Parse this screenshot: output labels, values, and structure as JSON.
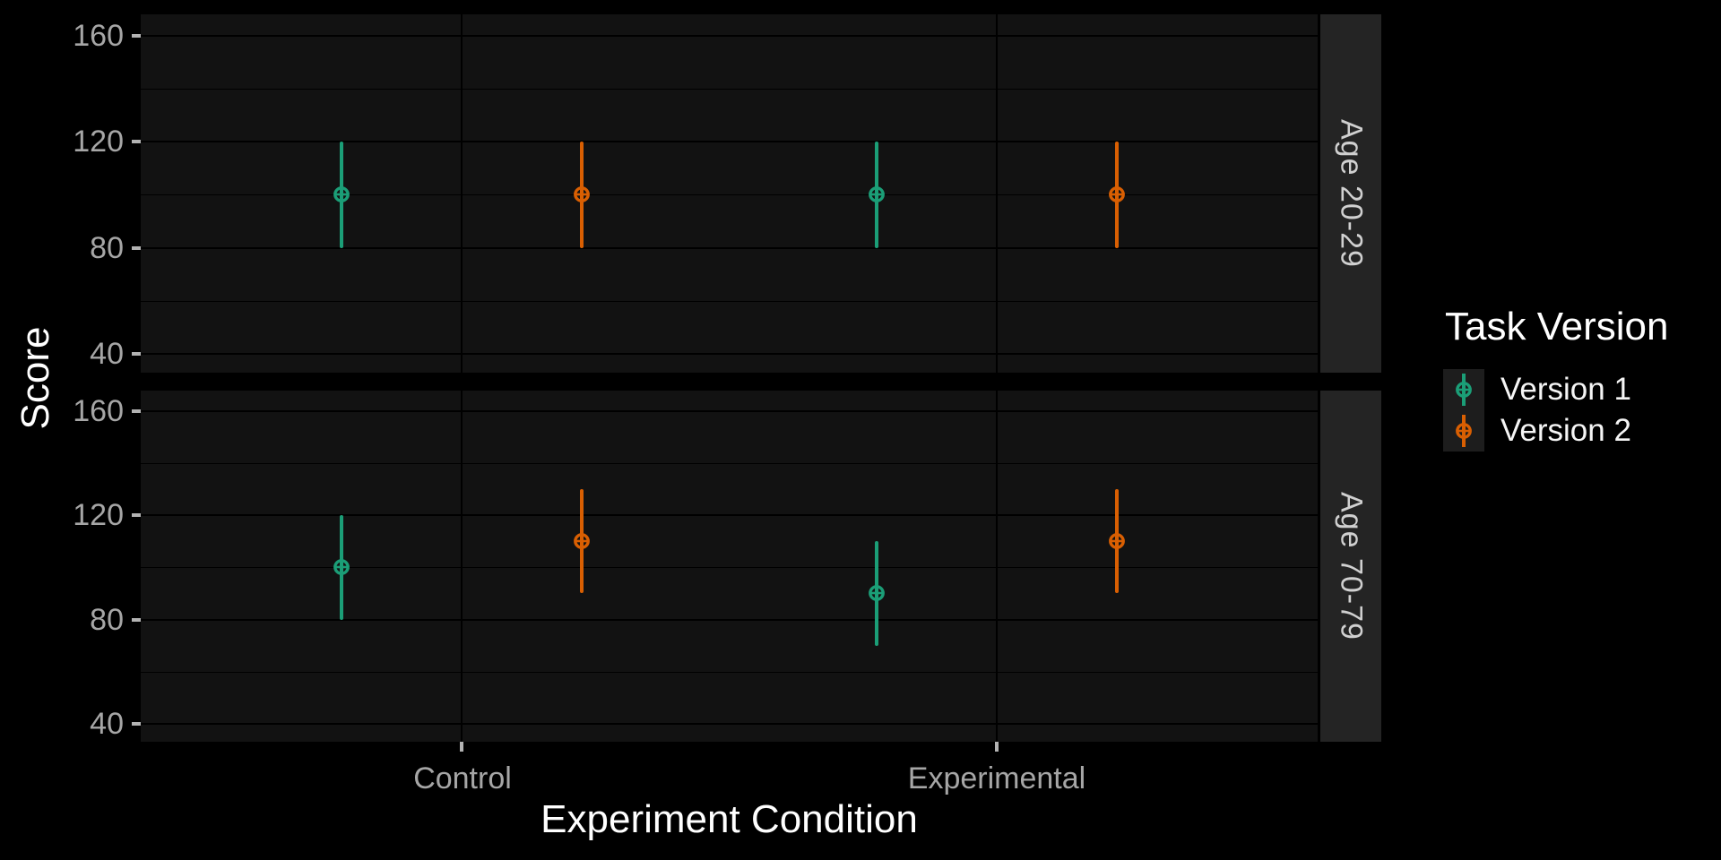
{
  "chart": {
    "y_axis_title": "Score",
    "x_axis_title": "Experiment Condition",
    "legend": {
      "title": "Task Version",
      "items": [
        {
          "label": "Version 1",
          "color": "#1B9E77"
        },
        {
          "label": "Version 2",
          "color": "#D95F02"
        }
      ]
    },
    "theme": {
      "background": "#000000",
      "panel_background": "#121212",
      "gridline_color": "#000000",
      "strip_background": "#242424",
      "strip_text_color": "#d0d0d0",
      "axis_text_color": "#a6a6a6",
      "tick_mark_color": "#b3b3b3",
      "title_color": "#ffffff"
    }
  },
  "chart_data": {
    "type": "pointrange",
    "title": "",
    "xlabel": "Experiment Condition",
    "ylabel": "Score",
    "x_categories": [
      "Control",
      "Experimental"
    ],
    "y_ticks": [
      40,
      80,
      120,
      160
    ],
    "y_minor_ticks": [
      60,
      100,
      140
    ],
    "ylim": [
      33,
      168
    ],
    "grid": true,
    "legend_position": "right",
    "series": [
      {
        "name": "Version 1",
        "color": "#1B9E77"
      },
      {
        "name": "Version 2",
        "color": "#D95F02"
      }
    ],
    "facets": [
      {
        "label": "Age 20-29",
        "points": [
          {
            "x": "Control",
            "series": "Version 1",
            "y": 100,
            "ymin": 80,
            "ymax": 120
          },
          {
            "x": "Control",
            "series": "Version 2",
            "y": 100,
            "ymin": 80,
            "ymax": 120
          },
          {
            "x": "Experimental",
            "series": "Version 1",
            "y": 100,
            "ymin": 80,
            "ymax": 120
          },
          {
            "x": "Experimental",
            "series": "Version 2",
            "y": 100,
            "ymin": 80,
            "ymax": 120
          }
        ]
      },
      {
        "label": "Age 70-79",
        "points": [
          {
            "x": "Control",
            "series": "Version 1",
            "y": 100,
            "ymin": 80,
            "ymax": 120
          },
          {
            "x": "Control",
            "series": "Version 2",
            "y": 110,
            "ymin": 90,
            "ymax": 130
          },
          {
            "x": "Experimental",
            "series": "Version 1",
            "y": 90,
            "ymin": 70,
            "ymax": 110
          },
          {
            "x": "Experimental",
            "series": "Version 2",
            "y": 110,
            "ymin": 90,
            "ymax": 130
          }
        ]
      }
    ]
  }
}
